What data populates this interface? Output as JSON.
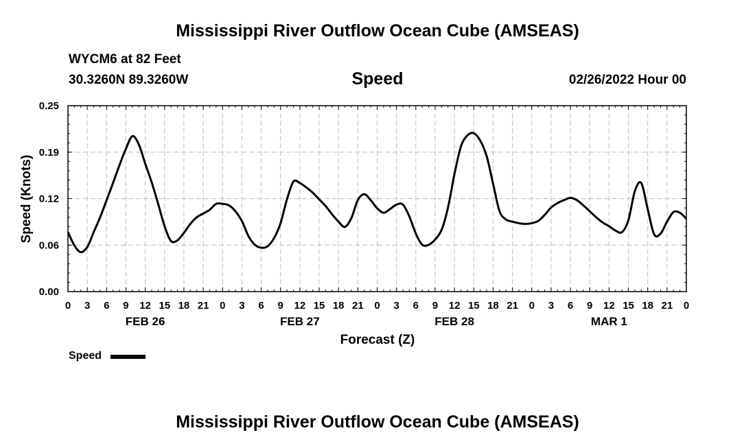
{
  "header": {
    "title": "Mississippi River Outflow Ocean Cube (AMSEAS)",
    "station": "WYCM6 at 82 Feet",
    "coords": "30.3260N  89.3260W",
    "variable": "Speed",
    "issued": "02/26/2022 Hour 00"
  },
  "footer": {
    "title": "Mississippi River Outflow Ocean Cube (AMSEAS)"
  },
  "legend": {
    "label": "Speed"
  },
  "chart_data": {
    "type": "line",
    "title": "Speed",
    "xlabel": "Forecast (Z)",
    "ylabel": "Speed (Knots)",
    "xlim": [
      0,
      96
    ],
    "ylim": [
      0.0,
      0.25
    ],
    "y_ticks": [
      "0.00",
      "0.06",
      "0.12",
      "0.19",
      "0.25"
    ],
    "y_tick_values": [
      0.0,
      0.0625,
      0.125,
      0.1875,
      0.25
    ],
    "x_ticks": [
      "0",
      "3",
      "6",
      "9",
      "12",
      "15",
      "18",
      "21",
      "0",
      "3",
      "6",
      "9",
      "12",
      "15",
      "18",
      "21",
      "0",
      "3",
      "6",
      "9",
      "12",
      "15",
      "18",
      "21",
      "0",
      "3",
      "6",
      "9",
      "12",
      "15",
      "18",
      "21",
      "0"
    ],
    "day_labels": [
      {
        "label": "FEB 26",
        "x": 12
      },
      {
        "label": "FEB 27",
        "x": 36
      },
      {
        "label": "FEB 28",
        "x": 60
      },
      {
        "label": "MAR 1",
        "x": 84
      }
    ],
    "grid": true,
    "legend_position": "bottom-left",
    "series": [
      {
        "name": "Speed",
        "color": "#000000",
        "x": [
          0,
          1,
          2,
          3,
          4,
          5,
          6,
          7,
          8,
          9,
          10,
          11,
          12,
          13,
          14,
          15,
          16,
          17,
          18,
          19,
          20,
          21,
          22,
          23,
          24,
          25,
          26,
          27,
          28,
          29,
          30,
          31,
          32,
          33,
          34,
          35,
          36,
          37,
          38,
          39,
          40,
          41,
          42,
          43,
          44,
          45,
          46,
          47,
          48,
          49,
          50,
          51,
          52,
          53,
          54,
          55,
          56,
          57,
          58,
          59,
          60,
          61,
          62,
          63,
          64,
          65,
          66,
          67,
          68,
          69,
          70,
          71,
          72,
          73,
          74,
          75,
          76,
          77,
          78,
          79,
          80,
          81,
          82,
          83,
          84,
          85,
          86,
          87,
          88,
          89,
          90,
          91,
          92,
          93,
          94,
          95,
          96
        ],
        "values": [
          0.08,
          0.062,
          0.053,
          0.06,
          0.08,
          0.1,
          0.123,
          0.146,
          0.17,
          0.192,
          0.209,
          0.198,
          0.172,
          0.147,
          0.118,
          0.088,
          0.068,
          0.069,
          0.079,
          0.091,
          0.1,
          0.105,
          0.11,
          0.118,
          0.118,
          0.116,
          0.108,
          0.095,
          0.075,
          0.063,
          0.059,
          0.061,
          0.072,
          0.092,
          0.124,
          0.148,
          0.146,
          0.14,
          0.133,
          0.124,
          0.115,
          0.104,
          0.094,
          0.087,
          0.099,
          0.123,
          0.131,
          0.123,
          0.112,
          0.106,
          0.111,
          0.117,
          0.117,
          0.101,
          0.078,
          0.063,
          0.063,
          0.07,
          0.083,
          0.113,
          0.158,
          0.195,
          0.21,
          0.213,
          0.203,
          0.182,
          0.145,
          0.108,
          0.097,
          0.094,
          0.092,
          0.091,
          0.092,
          0.095,
          0.103,
          0.113,
          0.119,
          0.123,
          0.126,
          0.123,
          0.116,
          0.108,
          0.1,
          0.093,
          0.088,
          0.082,
          0.08,
          0.096,
          0.135,
          0.146,
          0.111,
          0.077,
          0.078,
          0.094,
          0.107,
          0.106,
          0.098
        ]
      }
    ]
  }
}
